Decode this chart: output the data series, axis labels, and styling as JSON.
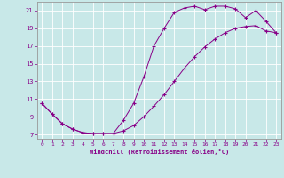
{
  "xlabel": "Windchill (Refroidissement éolien,°C)",
  "bg_color": "#c8e8e8",
  "grid_color": "#b0d0d0",
  "line_color": "#880088",
  "xlim": [
    -0.5,
    23.5
  ],
  "ylim": [
    6.5,
    22.0
  ],
  "yticks": [
    7,
    9,
    11,
    13,
    15,
    17,
    19,
    21
  ],
  "xticks": [
    0,
    1,
    2,
    3,
    4,
    5,
    6,
    7,
    8,
    9,
    10,
    11,
    12,
    13,
    14,
    15,
    16,
    17,
    18,
    19,
    20,
    21,
    22,
    23
  ],
  "curve1_x": [
    0,
    1,
    2,
    3,
    4,
    5,
    6,
    7,
    8,
    9,
    10,
    11,
    12,
    13,
    14,
    15,
    16,
    17,
    18,
    19,
    20,
    21,
    22,
    23
  ],
  "curve1_y": [
    10.5,
    9.3,
    8.2,
    7.6,
    7.2,
    7.1,
    7.1,
    7.1,
    7.4,
    8.0,
    9.0,
    10.2,
    11.5,
    13.0,
    14.5,
    15.8,
    16.9,
    17.8,
    18.5,
    19.0,
    19.2,
    19.3,
    18.7,
    18.5
  ],
  "curve2_x": [
    0,
    1,
    2,
    3,
    4,
    5,
    6,
    7,
    8,
    9,
    10,
    11,
    12,
    13,
    14,
    15,
    16,
    17,
    18,
    19,
    20,
    21,
    22,
    23
  ],
  "curve2_y": [
    10.5,
    9.3,
    8.2,
    7.6,
    7.2,
    7.1,
    7.1,
    7.1,
    8.6,
    10.5,
    13.5,
    17.0,
    19.0,
    20.8,
    21.3,
    21.5,
    21.1,
    21.5,
    21.5,
    21.2,
    20.2,
    21.0,
    19.8,
    18.5
  ]
}
